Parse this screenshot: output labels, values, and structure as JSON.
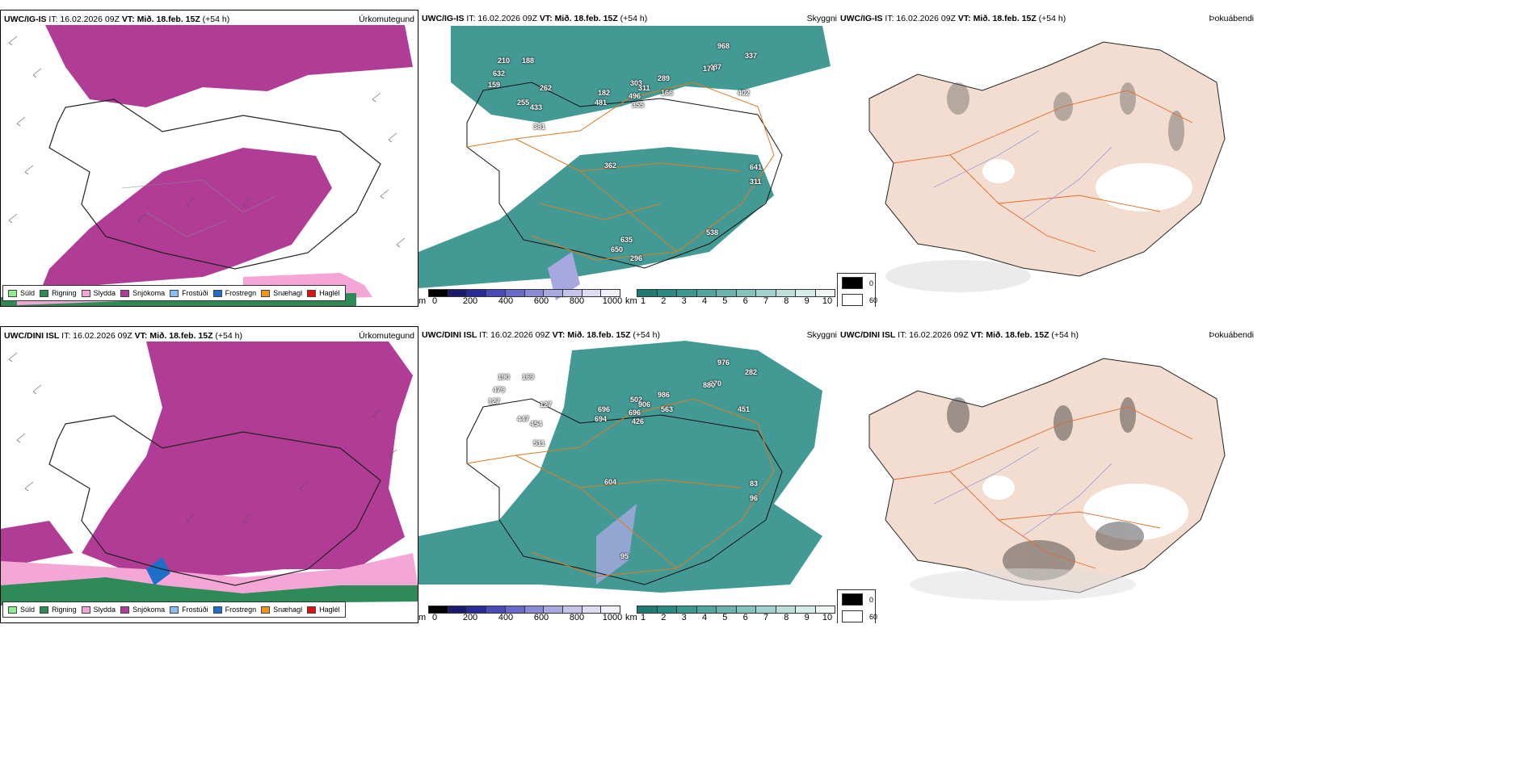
{
  "panels": [
    {
      "id": "p1",
      "header_bold": "UWC/IG-IS",
      "header_it": " IT: 16.02.2026 09Z ",
      "header_vt_bold": "VT: Mið. 18.feb. 15Z",
      "header_tail": " (+54 h)",
      "label": "Úrkomutegund"
    },
    {
      "id": "p2",
      "header_bold": "UWC/IG-IS",
      "header_it": " IT: 16.02.2026 09Z ",
      "header_vt_bold": "VT: Mið. 18.feb. 15Z",
      "header_tail": " (+54 h)",
      "label": "Skyggni"
    },
    {
      "id": "p3",
      "header_bold": "UWC/IG-IS",
      "header_it": " IT: 16.02.2026 09Z ",
      "header_vt_bold": "VT: Mið. 18.feb. 15Z",
      "header_tail": " (+54 h)",
      "label": "Þokuábendi"
    },
    {
      "id": "p4",
      "header_bold": "UWC/DINI ISL",
      "header_it": " IT: 16.02.2026 09Z ",
      "header_vt_bold": "VT: Mið. 18.feb. 15Z",
      "header_tail": " (+54 h)",
      "label": "Úrkomutegund"
    },
    {
      "id": "p5",
      "header_bold": "UWC/DINI ISL",
      "header_it": " IT: 16.02.2026 09Z ",
      "header_vt_bold": "VT: Mið. 18.feb. 15Z",
      "header_tail": " (+54 h)",
      "label": "Skyggni"
    },
    {
      "id": "p6",
      "header_bold": "UWC/DINI ISL",
      "header_it": " IT: 16.02.2026 09Z ",
      "header_vt_bold": "VT: Mið. 18.feb. 15Z",
      "header_tail": " (+54 h)",
      "label": "Þokuábendi"
    }
  ],
  "precip_legend": [
    {
      "label": "Súld",
      "color": "#90ee90"
    },
    {
      "label": "Rigning",
      "color": "#2e8b57"
    },
    {
      "label": "Slydda",
      "color": "#f4a6d7"
    },
    {
      "label": "Snjókoma",
      "color": "#b03c96"
    },
    {
      "label": "Frostúði",
      "color": "#87bff0"
    },
    {
      "label": "Frostregn",
      "color": "#1e6fc8"
    },
    {
      "label": "Snæhagl",
      "color": "#f0961e"
    },
    {
      "label": "Haglél",
      "color": "#e01010"
    }
  ],
  "height_bar": {
    "unit": "m",
    "ticks": [
      "0",
      "200",
      "400",
      "600",
      "800",
      "1000"
    ],
    "colors": [
      "#000000",
      "#1a1a6e",
      "#2a2a9a",
      "#4a4ab8",
      "#6a6ac8",
      "#8a8ad6",
      "#a8a8e0",
      "#c4c4ea",
      "#dcdcf4",
      "#f0f0fb"
    ]
  },
  "vis_bar": {
    "unit": "km",
    "ticks": [
      "1",
      "2",
      "3",
      "4",
      "5",
      "6",
      "7",
      "8",
      "9",
      "10"
    ],
    "colors": [
      "#1f7a72",
      "#2a8a82",
      "#3b9790",
      "#52a59e",
      "#6ab3ad",
      "#84c2bc",
      "#a0d1cc",
      "#bcdfdb",
      "#d6ece9",
      "#eef8f6"
    ]
  },
  "fog_legend": [
    {
      "label": "0",
      "color": "#000000"
    },
    {
      "label": "60",
      "color": "#ffffff"
    }
  ],
  "colors": {
    "snow": "#b03c96",
    "rain": "#2e8b57",
    "sleet": "#f4a6d7",
    "vis": "#2f8f88",
    "land": "#f2ddd0",
    "road": "#e26a2c",
    "coast": "#222222"
  },
  "labels_top": [
    "968",
    "337",
    "487",
    "632",
    "210",
    "188",
    "159",
    "262",
    "255",
    "433",
    "381",
    "182",
    "481",
    "303",
    "289",
    "311",
    "166",
    "174",
    "496",
    "355",
    "402",
    "362",
    "641",
    "311",
    "635",
    "650",
    "296",
    "538",
    "318"
  ],
  "labels_bottom": [
    "976",
    "282",
    "270",
    "479",
    "190",
    "169",
    "127",
    "127",
    "447",
    "454",
    "511",
    "696",
    "694",
    "502",
    "986",
    "906",
    "563",
    "880",
    "696",
    "426",
    "451",
    "604",
    "83",
    "96",
    "95"
  ]
}
